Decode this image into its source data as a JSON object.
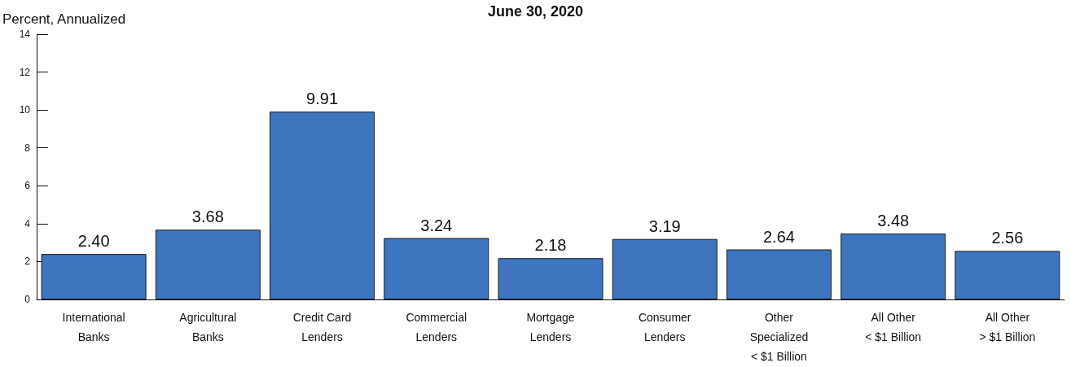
{
  "chart_data": {
    "type": "bar",
    "title": "June 30, 2020",
    "ylabel": "Percent, Annualized",
    "categories": [
      "International\nBanks",
      "Agricultural\nBanks",
      "Credit Card\nLenders",
      "Commercial\nLenders",
      "Mortgage\nLenders",
      "Consumer\nLenders",
      "Other\nSpecialized\n< $1 Billion",
      "All Other\n< $1 Billion",
      "All Other\n> $1 Billion"
    ],
    "values": [
      2.4,
      3.68,
      9.91,
      3.24,
      2.18,
      3.19,
      2.64,
      3.48,
      2.56
    ],
    "value_labels": [
      "2.40",
      "3.68",
      "9.91",
      "3.24",
      "2.18",
      "3.19",
      "2.64",
      "3.48",
      "2.56"
    ],
    "color": "#3d76bf",
    "ylim": [
      0,
      14
    ],
    "yticks": [
      0,
      2,
      4,
      6,
      8,
      10,
      12,
      14
    ],
    "grid": false
  }
}
